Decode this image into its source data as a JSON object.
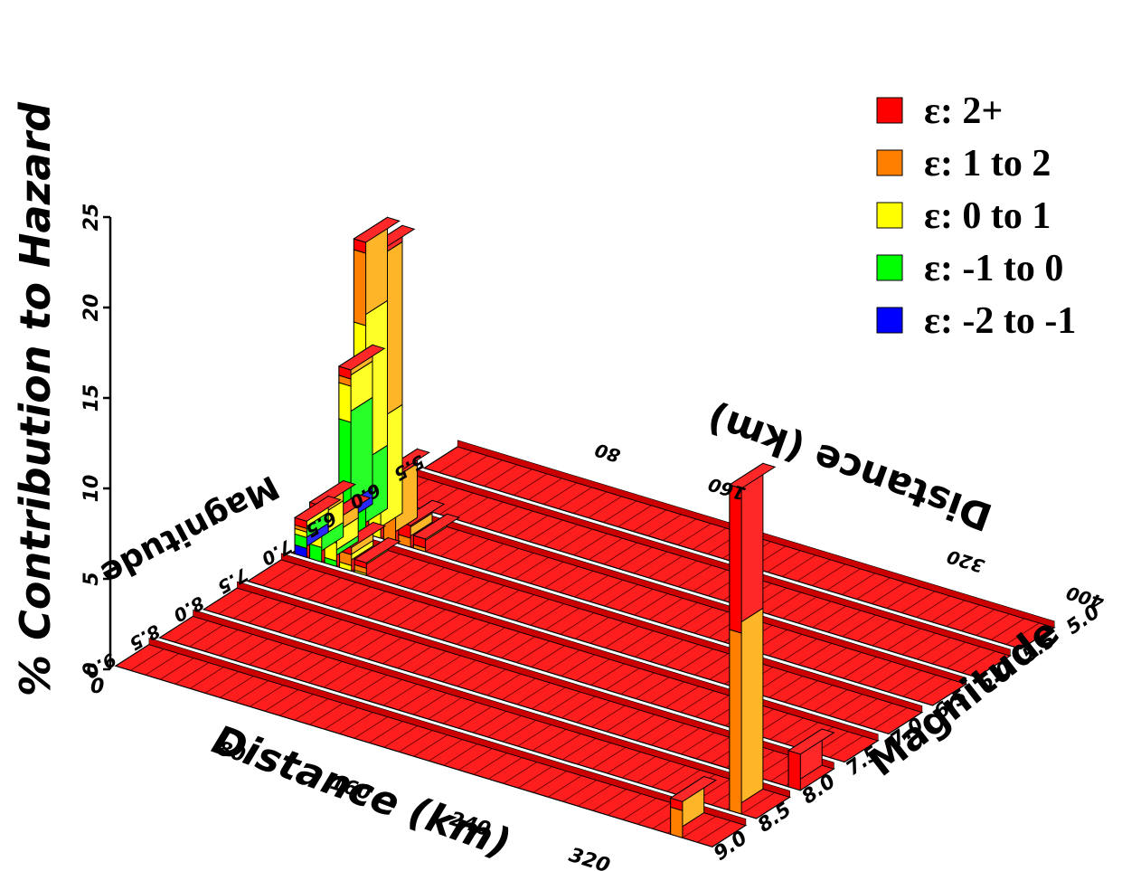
{
  "chart_data": {
    "type": "bar",
    "subtype": "3d-deaggregation",
    "ylabel": "% Contribution to Hazard",
    "xlabel": "Distance (km)",
    "xlabel_back": "Distance (km)",
    "mlabel": "Magnitude",
    "mlabel_back": "Magnitude",
    "z_ticks": [
      "0",
      "5",
      "10",
      "15",
      "20",
      "25"
    ],
    "zlim": [
      0,
      25
    ],
    "distance_ticks": [
      "80",
      "160",
      "240",
      "320",
      "400"
    ],
    "distance_ticks_back": [
      "80",
      "160",
      "320",
      "400"
    ],
    "magnitude_ticks_right": [
      "5.0",
      "5.5",
      "6.0",
      "6.5",
      "7.0",
      "7.5",
      "8.0",
      "8.5",
      "9.0"
    ],
    "magnitude_ticks_left": [
      "5.5",
      "6.0",
      "6.5",
      "7.0",
      "7.5",
      "8.0",
      "8.5",
      "9.0"
    ],
    "legend_placement": "top-right",
    "legend": [
      {
        "label": "ε:  2+",
        "color": "#ff0000"
      },
      {
        "label": "ε:  1 to  2",
        "color": "#ff8000"
      },
      {
        "label": "ε:  0 to  1",
        "color": "#ffff00"
      },
      {
        "label": "ε: -1 to  0",
        "color": "#00ff00"
      },
      {
        "label": "ε: -2 to -1",
        "color": "#0000ff"
      }
    ],
    "distance_bin_km": 10,
    "magnitude_bin": 0.5,
    "segments_order": [
      "ε: -2 to -1",
      "ε: -1 to  0",
      "ε:  0 to  1",
      "ε:  1 to  2",
      "ε:  2+"
    ],
    "bars": [
      {
        "distance": 10,
        "magnitude": 6.0,
        "segments": [
          0.9,
          5.0,
          2.0,
          0.4,
          0.5
        ]
      },
      {
        "distance": 20,
        "magnitude": 6.0,
        "segments": [
          0.0,
          3.5,
          8.0,
          4.0,
          0.6
        ]
      },
      {
        "distance": 30,
        "magnitude": 6.0,
        "segments": [
          0.0,
          0.0,
          6.0,
          9.0,
          0.9
        ]
      },
      {
        "distance": 40,
        "magnitude": 6.0,
        "segments": [
          0.0,
          0.0,
          0.0,
          3.0,
          0.8
        ]
      },
      {
        "distance": 50,
        "magnitude": 6.0,
        "segments": [
          0.0,
          0.0,
          0.0,
          0.5,
          0.7
        ]
      },
      {
        "distance": 60,
        "magnitude": 6.0,
        "segments": [
          0.0,
          0.0,
          0.0,
          0.2,
          0.5
        ]
      },
      {
        "distance": 10,
        "magnitude": 6.5,
        "segments": [
          0.5,
          0.6,
          0.3,
          0.2,
          0.4
        ]
      },
      {
        "distance": 20,
        "magnitude": 6.5,
        "segments": [
          0.0,
          0.8,
          1.2,
          0.6,
          0.5
        ]
      },
      {
        "distance": 30,
        "magnitude": 6.5,
        "segments": [
          0.0,
          0.3,
          1.0,
          0.8,
          0.5
        ]
      },
      {
        "distance": 40,
        "magnitude": 6.5,
        "segments": [
          0.0,
          0.0,
          0.3,
          0.6,
          0.4
        ]
      },
      {
        "distance": 50,
        "magnitude": 6.5,
        "segments": [
          0.0,
          0.0,
          0.1,
          0.3,
          0.3
        ]
      },
      {
        "distance": 390,
        "magnitude": 8.0,
        "segments": [
          0.0,
          0.0,
          0.0,
          10.0,
          8.0
        ]
      },
      {
        "distance": 400,
        "magnitude": 7.5,
        "segments": [
          0.0,
          0.0,
          0.0,
          0.0,
          2.0
        ]
      },
      {
        "distance": 380,
        "magnitude": 8.5,
        "segments": [
          0.0,
          0.0,
          0.0,
          1.5,
          0.5
        ]
      }
    ]
  }
}
